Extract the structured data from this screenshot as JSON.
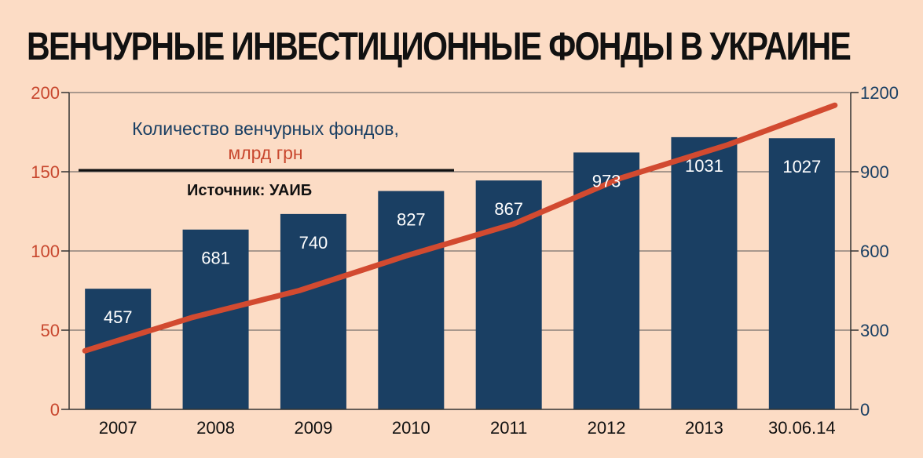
{
  "title": "ВЕНЧУРНЫЕ ИНВЕСТИЦИОННЫЕ ФОНДЫ В УКРАИНЕ",
  "legend": {
    "bars_label": "Количество венчурных фондов,",
    "line_label": "млрд грн"
  },
  "source": "Источник: УАИБ",
  "colors": {
    "background": "#fcdcc5",
    "bars": "#1a3f63",
    "line": "#d24a30",
    "left_axis": "#c8472e",
    "right_axis": "#1a3f63"
  },
  "chart_data": {
    "type": "bar",
    "categories": [
      "2007",
      "2008",
      "2009",
      "2010",
      "2011",
      "2012",
      "2013",
      "30.06.14"
    ],
    "series": [
      {
        "name": "Количество венчурных фондов",
        "type": "bar",
        "axis": "right",
        "values": [
          457,
          681,
          740,
          827,
          867,
          973,
          1031,
          1027
        ]
      },
      {
        "name": "млрд грн",
        "type": "line",
        "axis": "left",
        "values": [
          37,
          58,
          75,
          97,
          117,
          146,
          167,
          192
        ]
      }
    ],
    "left_axis": {
      "ticks": [
        "0",
        "50",
        "100",
        "150",
        "200"
      ],
      "ylim": [
        0,
        200
      ]
    },
    "right_axis": {
      "ticks": [
        "0",
        "300",
        "600",
        "900",
        "1200"
      ],
      "ylim": [
        0,
        1200
      ]
    },
    "grid": true,
    "legend_position": "top-left"
  }
}
